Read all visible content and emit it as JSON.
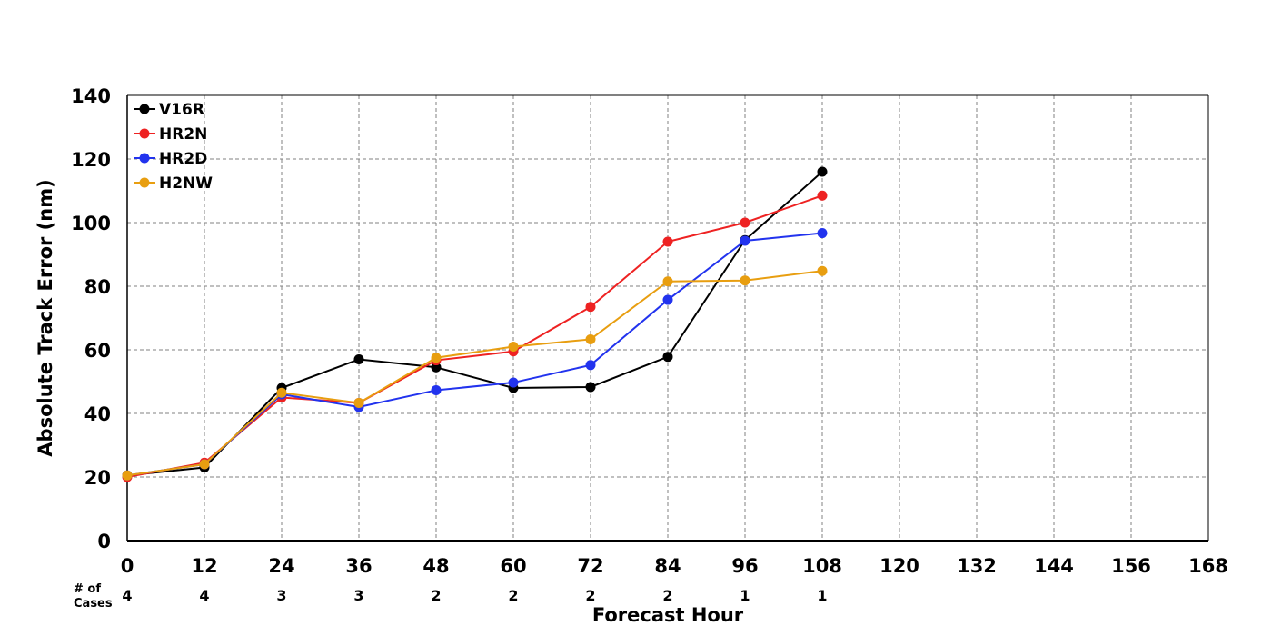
{
  "chart_data": {
    "type": "line",
    "xlabel": "Forecast Hour",
    "ylabel": "Absolute Track Error (nm)",
    "xlim": [
      0,
      168
    ],
    "ylim": [
      0,
      140
    ],
    "x_ticks": [
      "0",
      "12",
      "24",
      "36",
      "48",
      "60",
      "72",
      "84",
      "96",
      "108",
      "120",
      "132",
      "144",
      "156",
      "168"
    ],
    "y_ticks": [
      "0",
      "20",
      "40",
      "60",
      "80",
      "100",
      "120",
      "140"
    ],
    "grid": true,
    "legend_position": "top-left",
    "cases_header_line1": "# of",
    "cases_header_line2": "Cases",
    "cases": [
      "4",
      "4",
      "3",
      "3",
      "2",
      "2",
      "2",
      "2",
      "1",
      "1"
    ],
    "x": [
      0,
      12,
      24,
      36,
      48,
      60,
      72,
      84,
      96,
      108
    ],
    "series": [
      {
        "name": "V16R",
        "color": "#000000",
        "values": [
          20.5,
          23,
          48,
          57,
          54.5,
          48,
          48.3,
          57.8,
          94.5,
          116
        ]
      },
      {
        "name": "HR2N",
        "color": "#ee2222",
        "values": [
          20,
          24.5,
          45,
          43.3,
          56.7,
          59.5,
          73.5,
          94,
          100,
          108.5
        ]
      },
      {
        "name": "HR2D",
        "color": "#2233ee",
        "values": [
          20.5,
          24,
          46,
          42,
          47.3,
          49.7,
          55.2,
          75.7,
          94.3,
          96.7
        ]
      },
      {
        "name": "H2NW",
        "color": "#e89e10",
        "values": [
          20.5,
          24,
          46.5,
          43.3,
          57.5,
          61,
          63.3,
          81.5,
          81.8,
          84.8
        ]
      }
    ]
  }
}
